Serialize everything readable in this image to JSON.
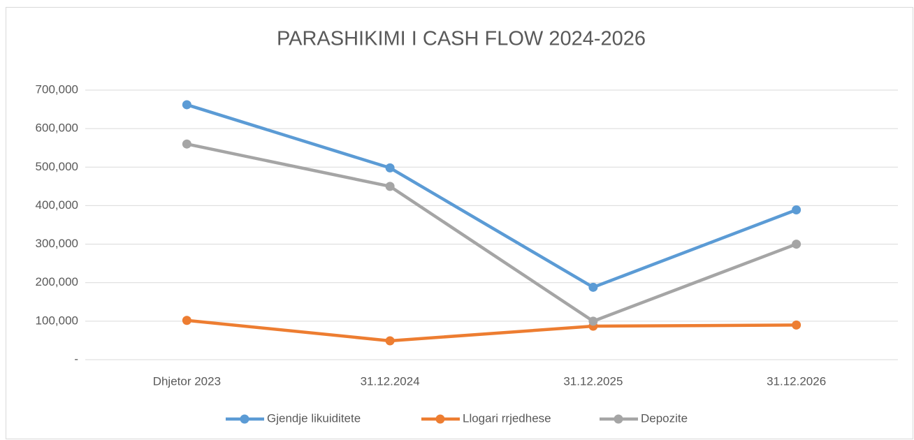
{
  "chart_data": {
    "type": "line",
    "title": "PARASHIKIMI I CASH FLOW 2024-2026",
    "categories": [
      "Dhjetor 2023",
      "31.12.2024",
      "31.12.2025",
      "31.12.2026"
    ],
    "series": [
      {
        "name": "Gjendje likuiditete",
        "color": "#5b9bd5",
        "values": [
          662000,
          498000,
          188000,
          389000
        ]
      },
      {
        "name": "Llogari rrjedhese",
        "color": "#ed7d31",
        "values": [
          102000,
          49000,
          87000,
          90000
        ]
      },
      {
        "name": "Depozite",
        "color": "#a5a5a5",
        "values": [
          560000,
          450000,
          100000,
          300000
        ]
      }
    ],
    "ylim": [
      0,
      700000
    ],
    "yticks": [
      {
        "value": 0,
        "label": "-"
      },
      {
        "value": 100000,
        "label": "100,000"
      },
      {
        "value": 200000,
        "label": "200,000"
      },
      {
        "value": 300000,
        "label": "300,000"
      },
      {
        "value": 400000,
        "label": "400,000"
      },
      {
        "value": 500000,
        "label": "500,000"
      },
      {
        "value": 600000,
        "label": "600,000"
      },
      {
        "value": 700000,
        "label": "700,000"
      }
    ],
    "grid": true,
    "legend": "bottom"
  }
}
